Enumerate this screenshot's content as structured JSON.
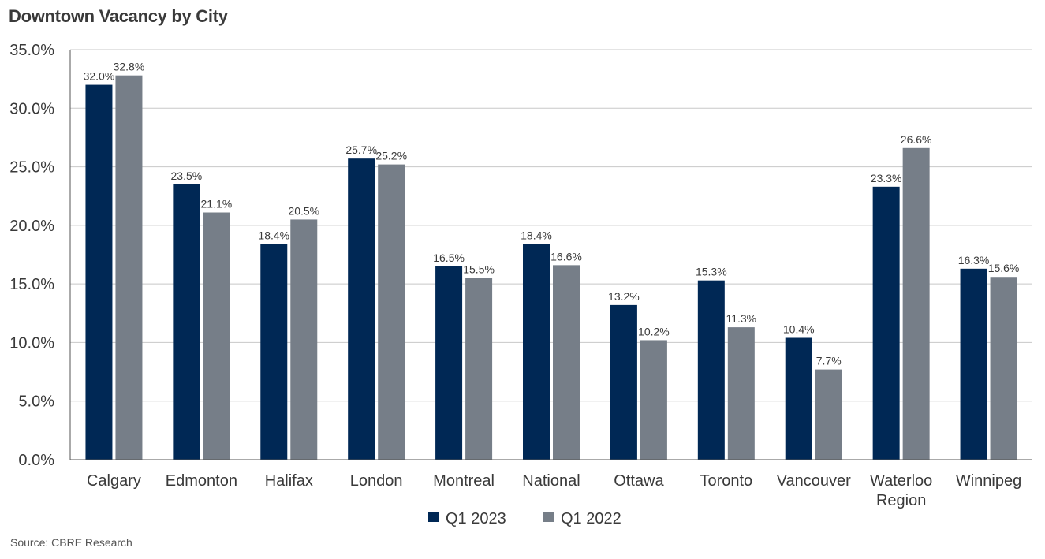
{
  "chart_data": {
    "type": "bar",
    "title": "Downtown Vacancy by City",
    "categories": [
      "Calgary",
      "Edmonton",
      "Halifax",
      "London",
      "Montreal",
      "National",
      "Ottawa",
      "Toronto",
      "Vancouver",
      "Waterloo Region",
      "Winnipeg"
    ],
    "series": [
      {
        "name": "Q1 2023",
        "color": "#002855",
        "values": [
          32.0,
          23.5,
          18.4,
          25.7,
          16.5,
          18.4,
          13.2,
          15.3,
          10.4,
          23.3,
          16.3
        ],
        "labels": [
          "32.0%",
          "23.5%",
          "18.4%",
          "25.7%",
          "16.5%",
          "18.4%",
          "13.2%",
          "15.3%",
          "10.4%",
          "23.3%",
          "16.3%"
        ]
      },
      {
        "name": "Q1 2022",
        "color": "#767e88",
        "values": [
          32.8,
          21.1,
          20.5,
          25.2,
          15.5,
          16.6,
          10.2,
          11.3,
          7.7,
          26.6,
          15.6
        ],
        "labels": [
          "32.8%",
          "21.1%",
          "20.5%",
          "25.2%",
          "15.5%",
          "16.6%",
          "10.2%",
          "11.3%",
          "7.7%",
          "26.6%",
          "15.6%"
        ]
      }
    ],
    "ylim": [
      0,
      35
    ],
    "yticks": [
      0,
      5,
      10,
      15,
      20,
      25,
      30,
      35
    ],
    "ytick_labels": [
      "0.0%",
      "5.0%",
      "10.0%",
      "15.0%",
      "20.0%",
      "25.0%",
      "30.0%",
      "35.0%"
    ],
    "xlabel": "",
    "ylabel": "",
    "grid": true,
    "legend_position": "bottom-center"
  },
  "source": "Source: CBRE Research"
}
